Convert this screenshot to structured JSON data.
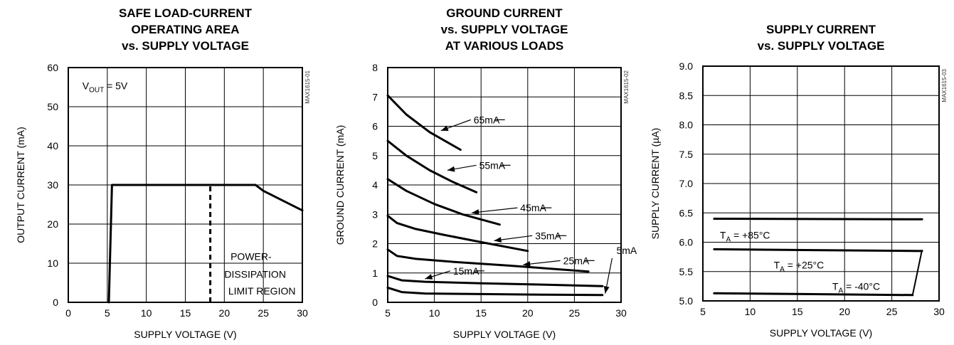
{
  "chart_data": [
    {
      "type": "line",
      "title": [
        "SAFE LOAD-CURRENT",
        "OPERATING AREA",
        "vs. SUPPLY VOLTAGE"
      ],
      "xlabel": "SUPPLY VOLTAGE (V)",
      "ylabel": "OUTPUT CURRENT (mA)",
      "xlim": [
        0,
        30
      ],
      "ylim": [
        0,
        60
      ],
      "xticks": [
        0,
        5,
        10,
        15,
        20,
        25,
        30
      ],
      "yticks": [
        0,
        10,
        20,
        30,
        40,
        50,
        60
      ],
      "grid": true,
      "code": "MAX1615-01",
      "series": [
        {
          "x": [
            5.2,
            5.6,
            24,
            25,
            27,
            30
          ],
          "y": [
            0,
            30,
            30,
            28.5,
            26.5,
            23.5
          ]
        }
      ],
      "dashed_lines": [
        {
          "x": [
            18.2,
            18.2
          ],
          "y": [
            0,
            30
          ]
        }
      ],
      "annotations": [
        {
          "text": "V",
          "sub": "OUT",
          "tail": " = 5V",
          "x": 1.8,
          "y": 54.5
        },
        {
          "text": "POWER-",
          "x": 20.8,
          "y": 10.8
        },
        {
          "text": "DISSIPATION",
          "x": 20.0,
          "y": 6.3
        },
        {
          "text": "LIMIT REGION",
          "x": 20.5,
          "y": 2.0
        }
      ]
    },
    {
      "type": "line",
      "title": [
        "GROUND CURRENT",
        "vs. SUPPLY VOLTAGE",
        "AT VARIOUS LOADS"
      ],
      "xlabel": "SUPPLY VOLTAGE (V)",
      "ylabel": "GROUND CURRENT (mA)",
      "xlim": [
        5,
        30
      ],
      "ylim": [
        0,
        8
      ],
      "xticks": [
        5,
        10,
        15,
        20,
        25,
        30
      ],
      "yticks": [
        0,
        1,
        2,
        3,
        4,
        5,
        6,
        7,
        8
      ],
      "grid": true,
      "code": "MAX1615-02",
      "series": [
        {
          "name": "65mA",
          "x": [
            5,
            7,
            9.5,
            12.8
          ],
          "y": [
            7.05,
            6.4,
            5.8,
            5.2
          ]
        },
        {
          "name": "55mA",
          "x": [
            5,
            7,
            9.5,
            12,
            14.5
          ],
          "y": [
            5.5,
            5.0,
            4.5,
            4.1,
            3.75
          ]
        },
        {
          "name": "45mA",
          "x": [
            5,
            7,
            10,
            13,
            17
          ],
          "y": [
            4.2,
            3.8,
            3.35,
            3.0,
            2.65
          ]
        },
        {
          "name": "35mA",
          "x": [
            5,
            6,
            8,
            11,
            15,
            20
          ],
          "y": [
            2.95,
            2.7,
            2.5,
            2.3,
            2.05,
            1.75
          ]
        },
        {
          "name": "25mA",
          "x": [
            5,
            6,
            8,
            12,
            18,
            26.5
          ],
          "y": [
            1.8,
            1.58,
            1.48,
            1.38,
            1.25,
            1.05
          ]
        },
        {
          "name": "15mA",
          "x": [
            5,
            6.5,
            9,
            15,
            22,
            28
          ],
          "y": [
            0.9,
            0.75,
            0.7,
            0.65,
            0.6,
            0.55
          ]
        },
        {
          "name": "5mA",
          "x": [
            5,
            6.5,
            9,
            15,
            22,
            28
          ],
          "y": [
            0.5,
            0.35,
            0.3,
            0.28,
            0.26,
            0.25
          ]
        }
      ],
      "annotations": [
        {
          "text": "65mA",
          "x": 14.2,
          "y": 6.1,
          "arrow_to": [
            10.7,
            5.85
          ]
        },
        {
          "text": "55mA",
          "x": 14.8,
          "y": 4.55,
          "arrow_to": [
            11.4,
            4.5
          ]
        },
        {
          "text": "45mA",
          "x": 19.2,
          "y": 3.1,
          "arrow_to": [
            14.0,
            3.05
          ]
        },
        {
          "text": "35mA",
          "x": 20.8,
          "y": 2.15,
          "arrow_to": [
            16.4,
            2.1
          ]
        },
        {
          "text": "25mA",
          "x": 23.8,
          "y": 1.3,
          "arrow_to": [
            19.5,
            1.28
          ]
        },
        {
          "text": "15mA",
          "x": 12.0,
          "y": 0.95,
          "arrow_to": [
            9.0,
            0.8
          ]
        },
        {
          "text": "5mA",
          "x": 29.5,
          "y": 1.65,
          "arrow_to": [
            28.3,
            0.3
          ]
        }
      ]
    },
    {
      "type": "line",
      "title": [
        "SUPPLY CURRENT",
        "vs. SUPPLY VOLTAGE"
      ],
      "xlabel": "SUPPLY VOLTAGE (V)",
      "ylabel": "SUPPLY CURRENT (µA)",
      "xlim": [
        5,
        30
      ],
      "ylim": [
        5.0,
        9.0
      ],
      "xticks": [
        5,
        10,
        15,
        20,
        25,
        30
      ],
      "yticks": [
        5.0,
        5.5,
        6.0,
        6.5,
        7.0,
        7.5,
        8.0,
        8.5,
        9.0
      ],
      "grid": true,
      "code": "MAX1615-03",
      "series": [
        {
          "name": "TA = +85°C",
          "x": [
            6.2,
            28.2
          ],
          "y": [
            6.4,
            6.39
          ]
        },
        {
          "name": "TA = +25°C",
          "x": [
            6.2,
            28.2
          ],
          "y": [
            5.88,
            5.85
          ]
        },
        {
          "name": "TA = -40°C",
          "x": [
            6.2,
            27.2
          ],
          "y": [
            5.13,
            5.1
          ]
        }
      ],
      "connector": {
        "x": [
          27.2,
          28.2
        ],
        "y": [
          5.1,
          5.87
        ]
      },
      "annotations": [
        {
          "text": "T",
          "sub": "A",
          "tail": " = +85°C",
          "x": 6.8,
          "y": 6.06
        },
        {
          "text": "T",
          "sub": "A",
          "tail": " = +25°C",
          "x": 12.5,
          "y": 5.55
        },
        {
          "text": "T",
          "sub": "A",
          "tail": " = -40°C",
          "x": 18.7,
          "y": 5.19
        }
      ]
    }
  ]
}
